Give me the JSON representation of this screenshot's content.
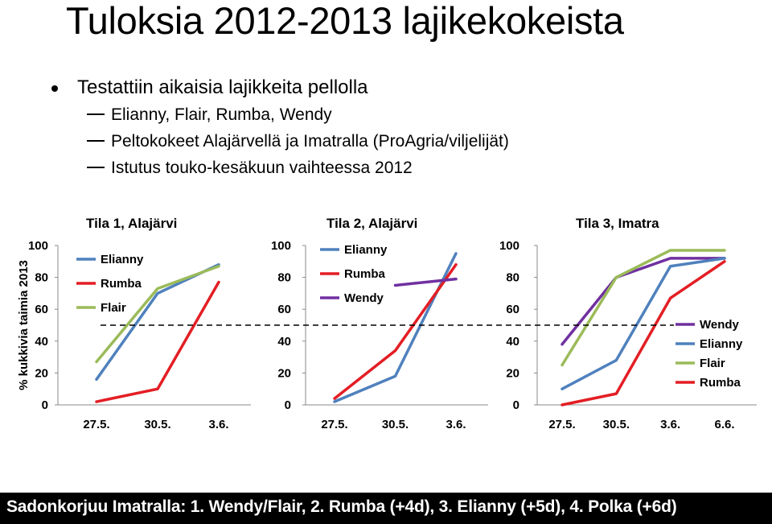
{
  "title": "Tuloksia 2012-2013 lajikekokeista",
  "bullets": {
    "main": "Testattiin aikaisia lajikkeita pellolla",
    "subs": [
      "Elianny, Flair, Rumba, Wendy",
      "Peltokokeet Alajärvellä ja Imatralla (ProAgria/viljelijät)",
      "Istutus touko-kesäkuun vaihteessa 2012"
    ]
  },
  "ylabel": "% kukkivia taimia 2013",
  "reference_line": {
    "y": 50
  },
  "footer": "Sadonkorjuu Imatralla: 1. Wendy/Flair, 2. Rumba (+4d), 3. Elianny (+5d), 4. Polka (+6d)",
  "colors": {
    "Elianny": "#4f81bd",
    "Rumba": "#e31e24",
    "Flair": "#9bbb59",
    "Wendy": "#7030a0"
  },
  "chart_data": [
    {
      "type": "line",
      "title": "Tila 1, Alajärvi",
      "categories": [
        "27.5.",
        "30.5.",
        "3.6."
      ],
      "ylim": [
        0,
        100
      ],
      "yticks": [
        "0",
        "20",
        "40",
        "60",
        "80",
        "100"
      ],
      "legend": "left",
      "series": [
        {
          "name": "Elianny",
          "values": [
            16,
            70,
            88
          ]
        },
        {
          "name": "Rumba",
          "values": [
            2,
            10,
            77
          ]
        },
        {
          "name": "Flair",
          "values": [
            27,
            73,
            87
          ]
        }
      ]
    },
    {
      "type": "line",
      "title": "Tila 2, Alajärvi",
      "categories": [
        "27.5.",
        "30.5.",
        "3.6."
      ],
      "ylim": [
        0,
        100
      ],
      "yticks": [
        "0",
        "20",
        "40",
        "60",
        "80",
        "100"
      ],
      "legend": "top",
      "series": [
        {
          "name": "Elianny",
          "values": [
            2,
            18,
            95
          ]
        },
        {
          "name": "Rumba",
          "values": [
            4,
            34,
            88
          ]
        },
        {
          "name": "Wendy",
          "values": [
            null,
            75,
            79
          ]
        }
      ]
    },
    {
      "type": "line",
      "title": "Tila 3, Imatra",
      "categories": [
        "27.5.",
        "30.5.",
        "3.6.",
        "6.6."
      ],
      "ylim": [
        0,
        100
      ],
      "yticks": [
        "0",
        "20",
        "40",
        "60",
        "80",
        "100"
      ],
      "legend": "right",
      "series": [
        {
          "name": "Wendy",
          "values": [
            38,
            80,
            92,
            92
          ]
        },
        {
          "name": "Elianny",
          "values": [
            10,
            28,
            87,
            92
          ]
        },
        {
          "name": "Flair",
          "values": [
            25,
            80,
            97,
            97
          ]
        },
        {
          "name": "Rumba",
          "values": [
            0,
            7,
            67,
            90
          ]
        }
      ]
    }
  ]
}
